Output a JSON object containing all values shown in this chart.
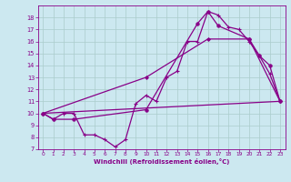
{
  "xlabel": "Windchill (Refroidissement éolien,°C)",
  "bg_color": "#cce8f0",
  "line_color": "#880088",
  "grid_color": "#aacccc",
  "xlim": [
    -0.5,
    23.5
  ],
  "ylim": [
    7,
    19
  ],
  "xticks": [
    0,
    1,
    2,
    3,
    4,
    5,
    6,
    7,
    8,
    9,
    10,
    11,
    12,
    13,
    14,
    15,
    16,
    17,
    18,
    19,
    20,
    21,
    22,
    23
  ],
  "yticks": [
    7,
    8,
    9,
    10,
    11,
    12,
    13,
    14,
    15,
    16,
    17,
    18
  ],
  "line1_x": [
    0,
    1,
    2,
    3,
    4,
    5,
    6,
    7,
    8,
    9,
    10,
    11,
    12,
    13,
    14,
    15,
    16,
    17,
    18,
    19,
    20,
    21,
    22,
    23
  ],
  "line1_y": [
    10,
    9.5,
    10,
    10,
    8.2,
    8.2,
    7.8,
    7.2,
    7.8,
    10.8,
    11.5,
    11.0,
    13.0,
    13.5,
    16.0,
    16.0,
    18.5,
    18.2,
    17.2,
    17.0,
    16.0,
    14.8,
    13.3,
    11.0
  ],
  "line2_x": [
    0,
    1,
    3,
    10,
    15,
    16,
    17,
    20,
    21,
    22,
    23
  ],
  "line2_y": [
    10,
    9.5,
    9.5,
    10.3,
    17.5,
    18.5,
    17.3,
    16.2,
    14.8,
    14.0,
    11.0
  ],
  "line3_x": [
    0,
    23
  ],
  "line3_y": [
    10,
    11.0
  ],
  "line4_x": [
    0,
    10,
    16,
    20,
    23
  ],
  "line4_y": [
    10,
    13.0,
    16.2,
    16.2,
    11.0
  ]
}
